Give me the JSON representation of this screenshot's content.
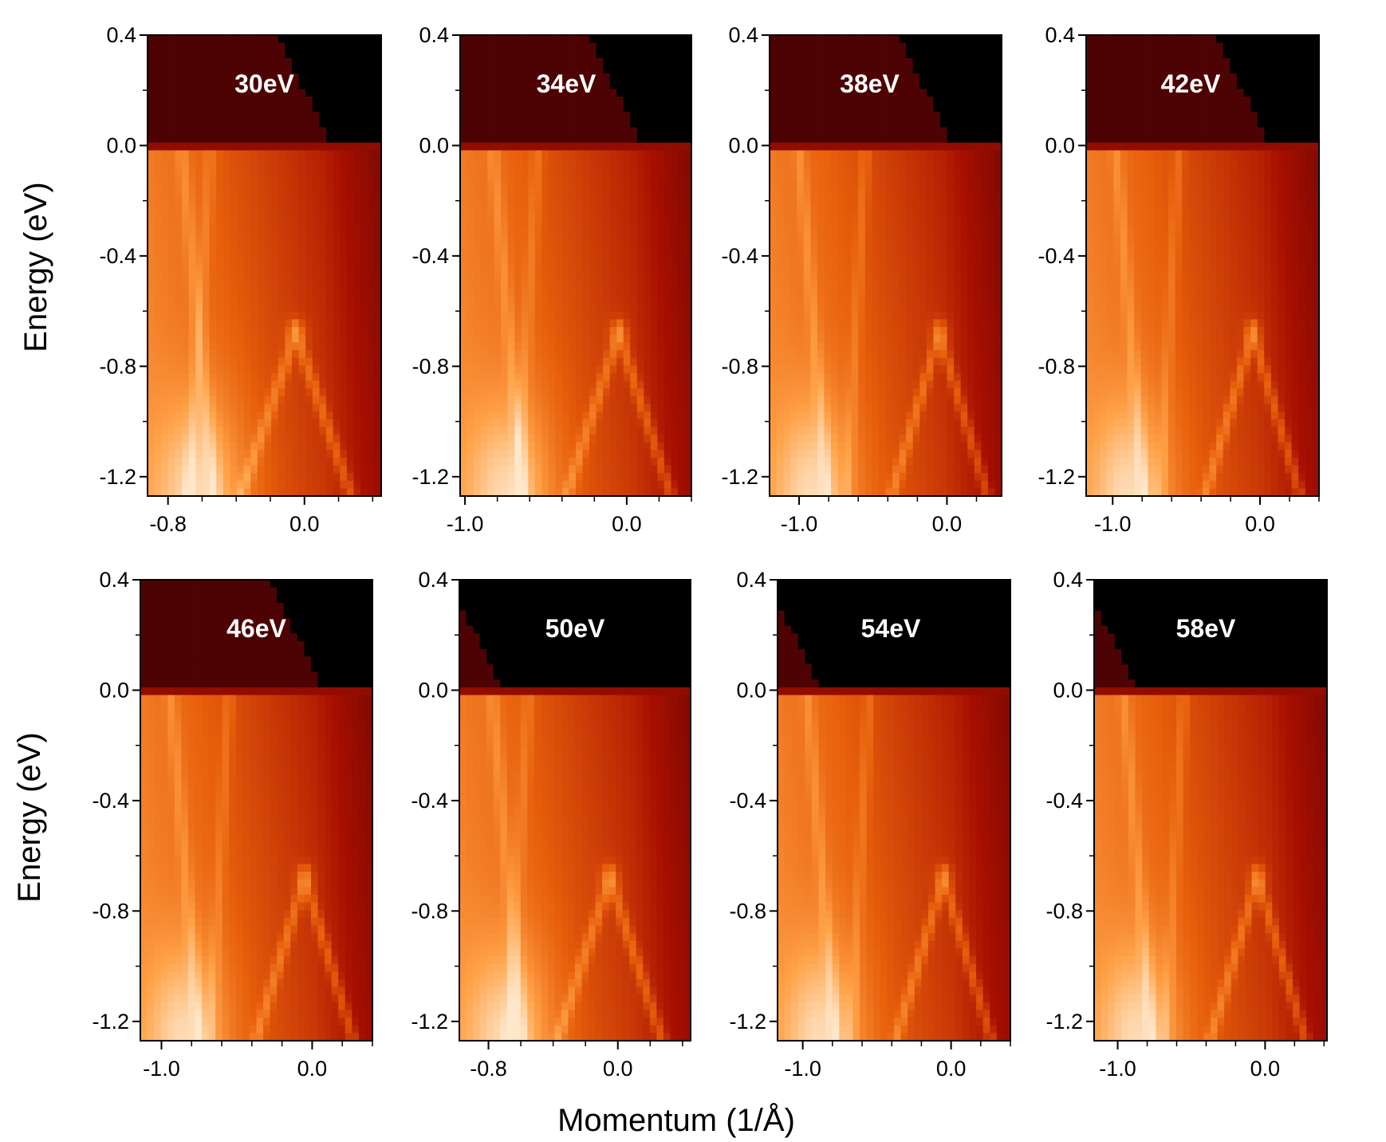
{
  "figure": {
    "ylabel": "Energy (eV)",
    "xlabel": "Momentum (1/Å)"
  },
  "colormap": [
    "#000000",
    "#5a0404",
    "#a80f00",
    "#e8600c",
    "#ffa248",
    "#ffe7cc"
  ],
  "chart_data": [
    {
      "type": "heatmap",
      "label": "30eV",
      "xlim": [
        -0.92,
        0.45
      ],
      "ylim": [
        -1.27,
        0.4
      ],
      "xticks": [
        -0.8,
        0.0
      ],
      "xtick_labels": [
        "-0.8",
        "0.0"
      ],
      "yticks": [
        0.4,
        0.0,
        -0.4,
        -0.8,
        -1.2
      ],
      "ytick_labels": [
        "0.4",
        "0.0",
        "-0.4",
        "-0.8",
        "-1.2"
      ]
    },
    {
      "type": "heatmap",
      "label": "34eV",
      "xlim": [
        -1.03,
        0.4
      ],
      "ylim": [
        -1.27,
        0.4
      ],
      "xticks": [
        -1.0,
        0.0
      ],
      "xtick_labels": [
        "-1.0",
        "0.0"
      ],
      "yticks": [
        0.4,
        0.0,
        -0.4,
        -0.8,
        -1.2
      ],
      "ytick_labels": [
        "0.4",
        "0.0",
        "-0.4",
        "-0.8",
        "-1.2"
      ]
    },
    {
      "type": "heatmap",
      "label": "38eV",
      "xlim": [
        -1.2,
        0.37
      ],
      "ylim": [
        -1.27,
        0.4
      ],
      "xticks": [
        -1.0,
        0.0
      ],
      "xtick_labels": [
        "-1.0",
        "0.0"
      ],
      "yticks": [
        0.4,
        0.0,
        -0.4,
        -0.8,
        -1.2
      ],
      "ytick_labels": [
        "0.4",
        "0.0",
        "-0.4",
        "-0.8",
        "-1.2"
      ]
    },
    {
      "type": "heatmap",
      "label": "42eV",
      "xlim": [
        -1.18,
        0.4
      ],
      "ylim": [
        -1.27,
        0.4
      ],
      "xticks": [
        -1.0,
        0.0
      ],
      "xtick_labels": [
        "-1.0",
        "0.0"
      ],
      "yticks": [
        0.4,
        0.0,
        -0.4,
        -0.8,
        -1.2
      ],
      "ytick_labels": [
        "0.4",
        "0.0",
        "-0.4",
        "-0.8",
        "-1.2"
      ]
    },
    {
      "type": "heatmap",
      "label": "46eV",
      "xlim": [
        -1.14,
        0.4
      ],
      "ylim": [
        -1.27,
        0.4
      ],
      "xticks": [
        -1.0,
        0.0
      ],
      "xtick_labels": [
        "-1.0",
        "0.0"
      ],
      "yticks": [
        0.4,
        0.0,
        -0.4,
        -0.8,
        -1.2
      ],
      "ytick_labels": [
        "0.4",
        "0.0",
        "-0.4",
        "-0.8",
        "-1.2"
      ]
    },
    {
      "type": "heatmap",
      "label": "50eV",
      "xlim": [
        -0.98,
        0.45
      ],
      "ylim": [
        -1.27,
        0.4
      ],
      "xticks": [
        -0.8,
        0.0
      ],
      "xtick_labels": [
        "-0.8",
        "0.0"
      ],
      "yticks": [
        0.4,
        0.0,
        -0.4,
        -0.8,
        -1.2
      ],
      "ytick_labels": [
        "0.4",
        "0.0",
        "-0.4",
        "-0.8",
        "-1.2"
      ]
    },
    {
      "type": "heatmap",
      "label": "54eV",
      "xlim": [
        -1.17,
        0.4
      ],
      "ylim": [
        -1.27,
        0.4
      ],
      "xticks": [
        -1.0,
        0.0
      ],
      "xtick_labels": [
        "-1.0",
        "0.0"
      ],
      "yticks": [
        0.4,
        0.0,
        -0.4,
        -0.8,
        -1.2
      ],
      "ytick_labels": [
        "0.4",
        "0.0",
        "-0.4",
        "-0.8",
        "-1.2"
      ]
    },
    {
      "type": "heatmap",
      "label": "58eV",
      "xlim": [
        -1.16,
        0.42
      ],
      "ylim": [
        -1.27,
        0.4
      ],
      "xticks": [
        -1.0,
        0.0
      ],
      "xtick_labels": [
        "-1.0",
        "0.0"
      ],
      "yticks": [
        0.4,
        0.0,
        -0.4,
        -0.8,
        -1.2
      ],
      "ytick_labels": [
        "0.4",
        "0.0",
        "-0.4",
        "-0.8",
        "-1.2"
      ]
    }
  ]
}
